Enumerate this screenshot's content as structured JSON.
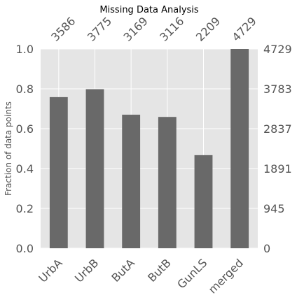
{
  "chart_data": {
    "type": "bar",
    "title": "Missing Data Analysis",
    "xlabel": "",
    "ylabel": "Fraction of data points",
    "categories": [
      "UrbA",
      "UrbB",
      "ButA",
      "ButB",
      "GunLS",
      "merged"
    ],
    "values": [
      3586,
      3775,
      3169,
      3116,
      2209,
      4729
    ],
    "top_labels": [
      "3586",
      "3775",
      "3169",
      "3116",
      "2209",
      "4729"
    ],
    "total": 4729,
    "ylim": [
      0,
      1
    ],
    "left_ticks": [
      "0.0",
      "0.2",
      "0.4",
      "0.6",
      "0.8",
      "1.0"
    ],
    "right_ticks": [
      "0",
      "945",
      "1891",
      "2837",
      "3783",
      "4729"
    ],
    "grid": true,
    "bar_color": "#696969",
    "background_color": "#e5e5e5",
    "grid_color": "#ffffff"
  }
}
